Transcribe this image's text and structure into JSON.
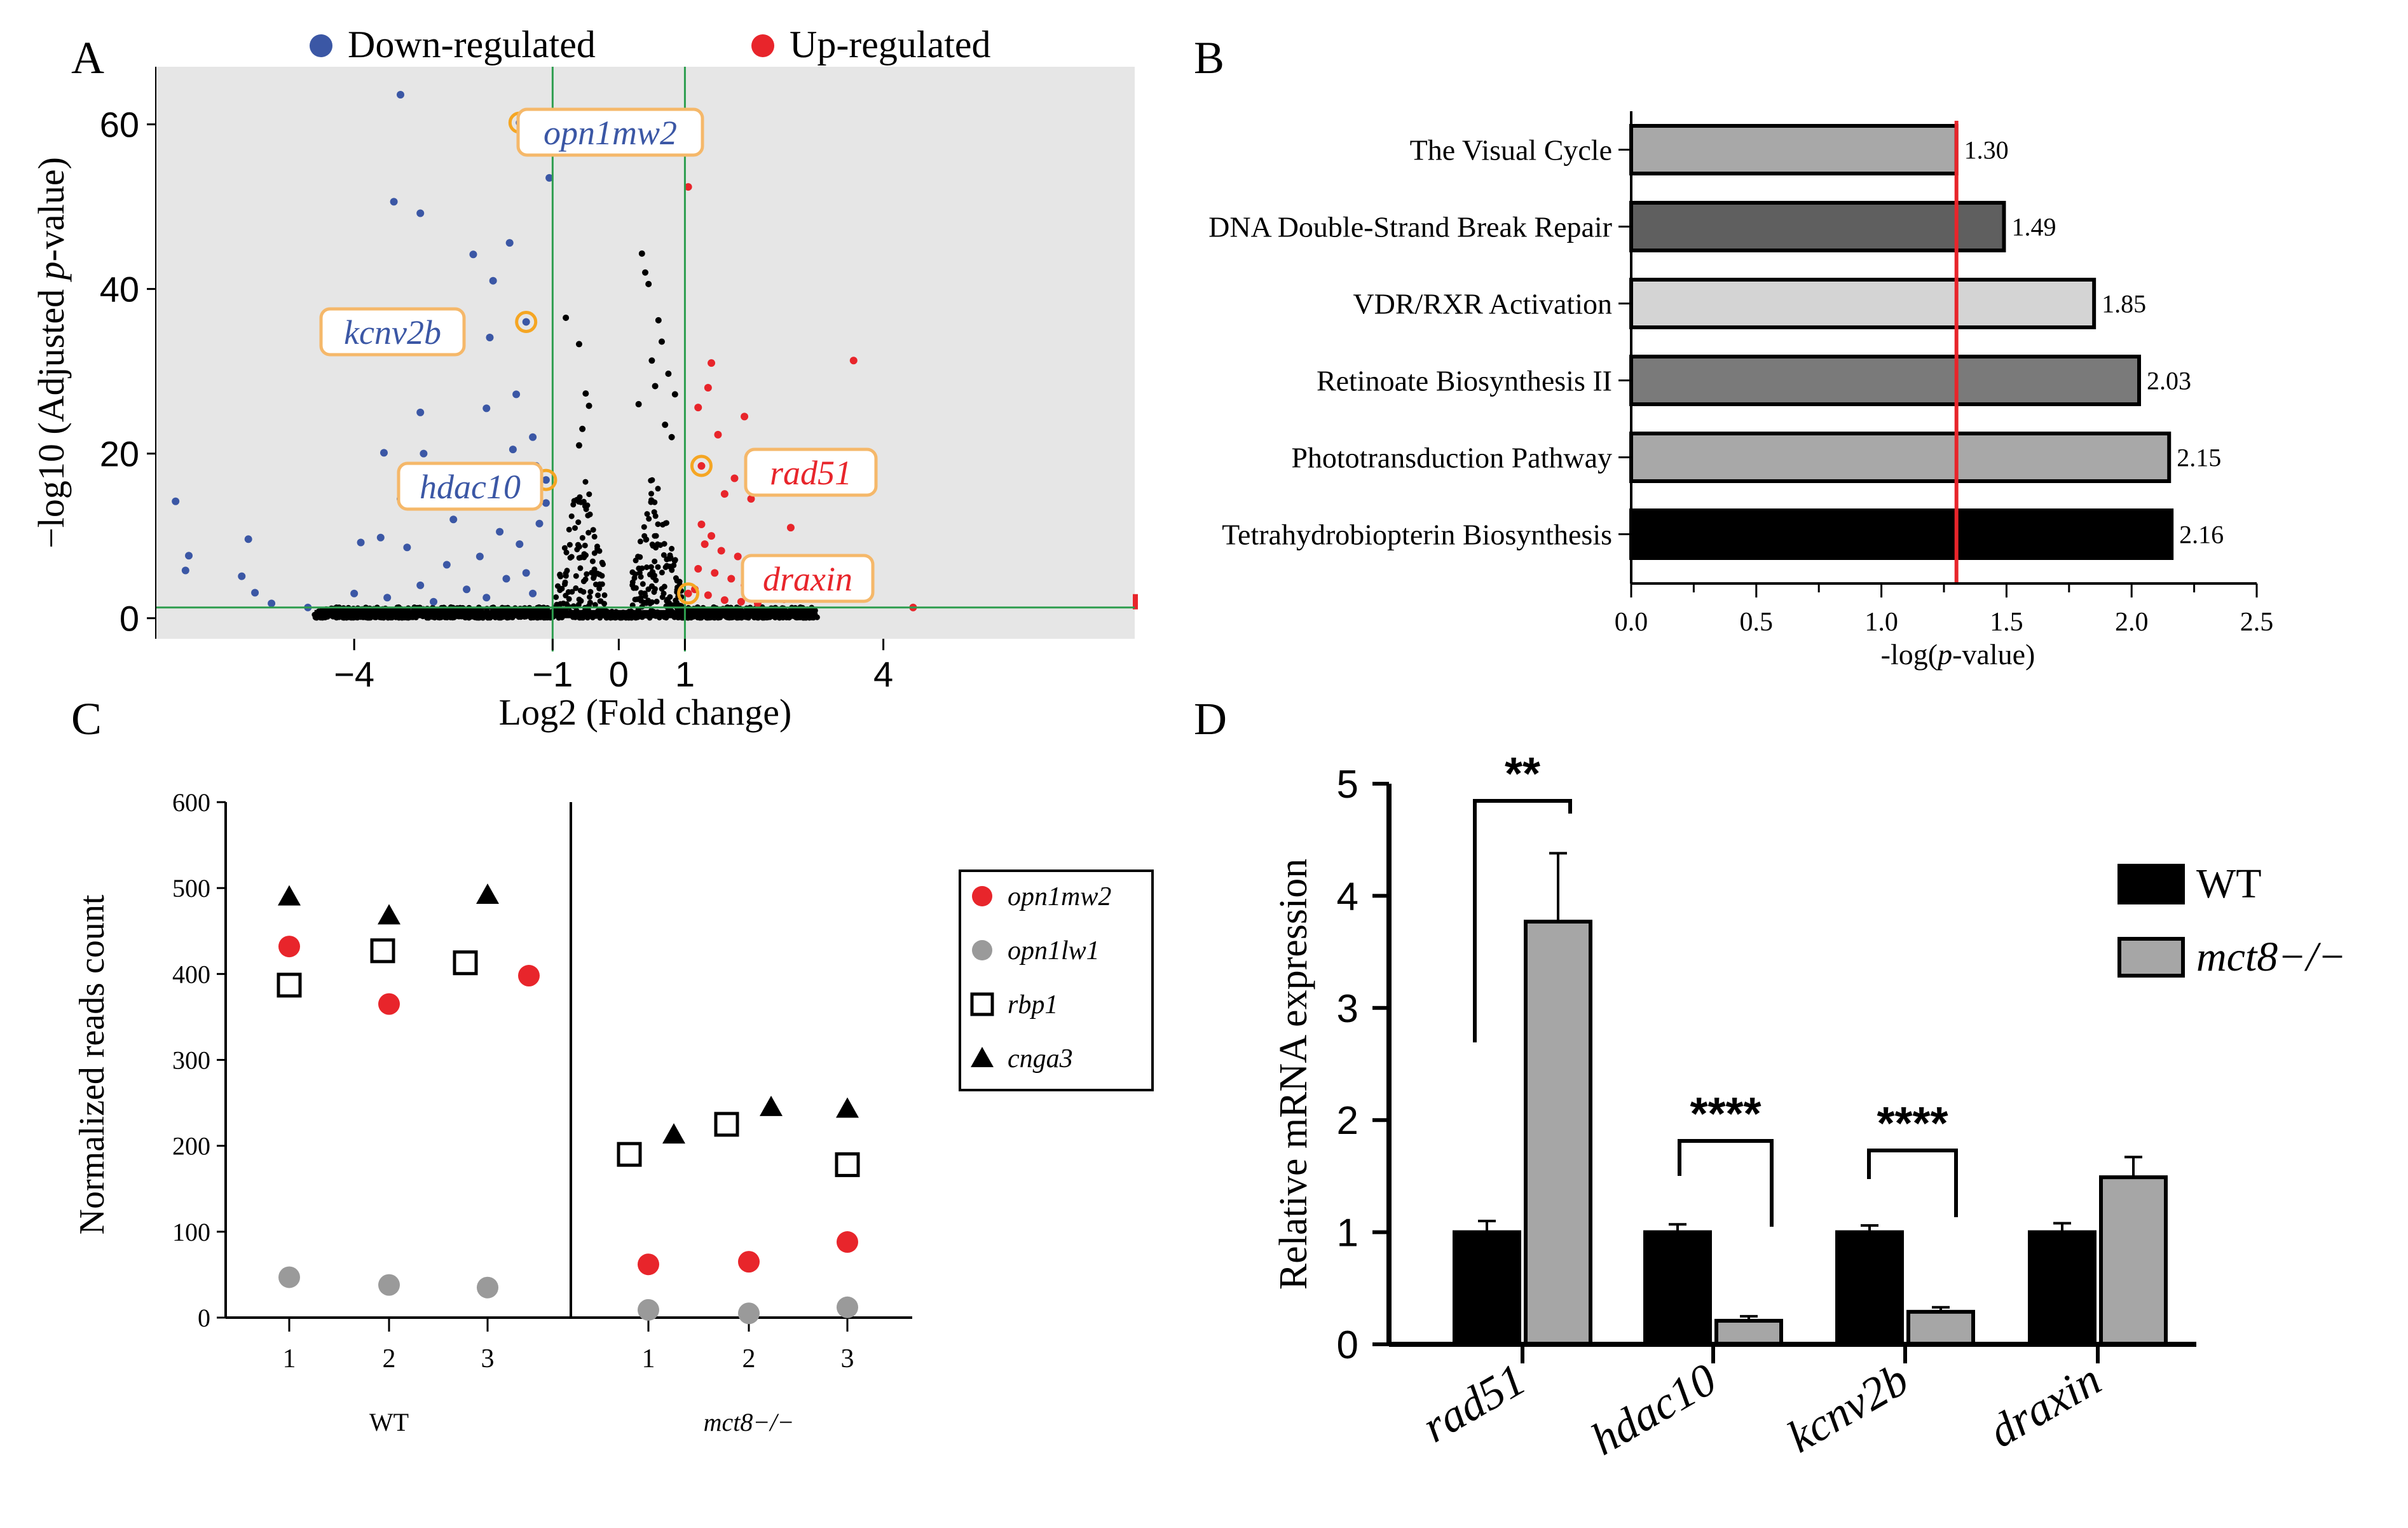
{
  "panels": {
    "A": "A",
    "B": "B",
    "C": "C",
    "D": "D"
  },
  "chart_data": [
    {
      "id": "A",
      "type": "scatter",
      "title": "",
      "xlabel": "Log2 (Fold change)",
      "ylabel": "−log10 (Adjusted p-value)",
      "ylabel_parts": [
        "−log10 (Adjusted ",
        "p",
        "-value)"
      ],
      "xlim": [
        -7.0,
        7.8
      ],
      "ylim": [
        -2.5,
        67
      ],
      "xticks": [
        -4,
        -1,
        0,
        1,
        4
      ],
      "xtick_labels": [
        "−4",
        "−1",
        "0",
        "1",
        "4"
      ],
      "yticks": [
        0,
        20,
        40,
        60
      ],
      "thresholds": {
        "log2fc": [
          -1,
          1
        ],
        "neg_log10_p": 1.3
      },
      "legend": [
        {
          "label": "Down-regulated",
          "color": "#3b57a5"
        },
        {
          "label": "Up-regulated",
          "color": "#e8252b"
        }
      ],
      "colors": {
        "down": "#3b57a5",
        "up": "#e8252b",
        "ns": "#000000",
        "threshold": "#2e9e4f",
        "panel_bg": "#e6e6e6",
        "highlight": "#f5a623",
        "label_box_border": "#f5b86a"
      },
      "highlighted_genes": [
        {
          "gene": "opn1mw2",
          "x": -1.5,
          "y": 60.2,
          "direction": "down"
        },
        {
          "gene": "kcnv2b",
          "x": -1.4,
          "y": 36.0,
          "direction": "down"
        },
        {
          "gene": "hdac10",
          "x": -1.1,
          "y": 16.8,
          "direction": "down"
        },
        {
          "gene": "rad51",
          "x": 1.25,
          "y": 18.5,
          "direction": "up"
        },
        {
          "gene": "draxin",
          "x": 1.05,
          "y": 3.0,
          "direction": "up"
        }
      ],
      "points": {
        "down": [
          [
            -6.7,
            14.2
          ],
          [
            -6.5,
            7.6
          ],
          [
            -6.55,
            5.8
          ],
          [
            -5.6,
            9.6
          ],
          [
            -5.7,
            5.1
          ],
          [
            -5.5,
            3.1
          ],
          [
            -5.25,
            1.8
          ],
          [
            -4.7,
            1.3
          ],
          [
            -3.3,
            63.6
          ],
          [
            -3.4,
            50.6
          ],
          [
            -3.0,
            49.2
          ],
          [
            -2.2,
            44.2
          ],
          [
            -1.65,
            45.6
          ],
          [
            -1.9,
            41.0
          ],
          [
            -1.95,
            34.1
          ],
          [
            -2.0,
            25.5
          ],
          [
            -1.55,
            27.2
          ],
          [
            -3.0,
            25.0
          ],
          [
            -3.55,
            20.1
          ],
          [
            -2.95,
            20.0
          ],
          [
            -2.8,
            17.5
          ],
          [
            -3.3,
            14.5
          ],
          [
            -3.6,
            9.8
          ],
          [
            -3.9,
            9.2
          ],
          [
            -3.2,
            8.6
          ],
          [
            -2.5,
            12.0
          ],
          [
            -1.6,
            20.5
          ],
          [
            -1.3,
            22.0
          ],
          [
            -1.25,
            18.5
          ],
          [
            -1.05,
            53.5
          ],
          [
            -2.6,
            6.5
          ],
          [
            -2.1,
            7.5
          ],
          [
            -1.8,
            10.5
          ],
          [
            -1.5,
            9.0
          ],
          [
            -1.2,
            11.5
          ],
          [
            -1.1,
            14.0
          ],
          [
            -3.0,
            4.0
          ],
          [
            -2.3,
            3.5
          ],
          [
            -1.7,
            4.8
          ],
          [
            -1.4,
            5.5
          ],
          [
            -4.0,
            3.0
          ],
          [
            -3.5,
            2.5
          ],
          [
            -2.8,
            2.0
          ],
          [
            -2.0,
            2.5
          ],
          [
            -1.3,
            3.0
          ]
        ],
        "up": [
          [
            3.55,
            31.3
          ],
          [
            3.6,
            3.7
          ],
          [
            4.45,
            1.3
          ],
          [
            1.4,
            31.0
          ],
          [
            1.35,
            28.0
          ],
          [
            1.9,
            24.5
          ],
          [
            1.5,
            22.3
          ],
          [
            1.2,
            25.6
          ],
          [
            1.75,
            17.0
          ],
          [
            1.6,
            15.1
          ],
          [
            2.15,
            17.1
          ],
          [
            2.0,
            14.5
          ],
          [
            2.6,
            11.0
          ],
          [
            2.8,
            6.6
          ],
          [
            1.25,
            11.4
          ],
          [
            1.4,
            10.0
          ],
          [
            1.3,
            9.0
          ],
          [
            1.55,
            8.2
          ],
          [
            1.8,
            7.5
          ],
          [
            2.05,
            6.5
          ],
          [
            2.3,
            5.0
          ],
          [
            1.2,
            6.0
          ],
          [
            1.45,
            5.5
          ],
          [
            1.7,
            4.8
          ],
          [
            1.9,
            4.0
          ],
          [
            2.2,
            3.0
          ],
          [
            2.5,
            2.3
          ],
          [
            1.15,
            3.5
          ],
          [
            1.35,
            2.8
          ],
          [
            1.6,
            2.2
          ],
          [
            1.85,
            2.0
          ],
          [
            2.1,
            1.8
          ],
          [
            1.05,
            52.4
          ]
        ],
        "ns_extra": [
          [
            -0.8,
            36.5
          ],
          [
            -0.6,
            33.3
          ],
          [
            -0.5,
            27.3
          ],
          [
            -0.45,
            25.8
          ],
          [
            0.35,
            44.3
          ],
          [
            0.4,
            42.0
          ],
          [
            0.45,
            40.6
          ],
          [
            0.6,
            36.2
          ],
          [
            0.65,
            33.6
          ],
          [
            0.5,
            31.3
          ],
          [
            0.75,
            29.7
          ],
          [
            0.55,
            28.2
          ],
          [
            0.85,
            27.2
          ],
          [
            0.3,
            26.0
          ],
          [
            -0.55,
            23.0
          ],
          [
            -0.6,
            21.0
          ],
          [
            0.7,
            23.5
          ],
          [
            0.8,
            22.0
          ]
        ]
      },
      "ns_cloud": {
        "x_range": [
          -4.6,
          3.0
        ],
        "note": "dense non-significant genes near the axes"
      }
    },
    {
      "id": "B",
      "type": "bar",
      "orientation": "horizontal",
      "title": "",
      "xlabel": "-log(p-value)",
      "xlabel_parts": [
        "-log(",
        "p",
        "-value)"
      ],
      "ylabel": "",
      "xlim": [
        0,
        2.5
      ],
      "xticks": [
        0.0,
        0.5,
        1.0,
        1.5,
        2.0,
        2.5
      ],
      "xtick_labels": [
        "0.0",
        "0.5",
        "1.0",
        "1.5",
        "2.0",
        "2.5"
      ],
      "threshold": 1.3,
      "threshold_color": "#e8252b",
      "categories": [
        "The Visual Cycle",
        "DNA Double-Strand Break Repair",
        "VDR/RXR Activation",
        "Retinoate Biosynthesis II",
        "Phototransduction Pathway",
        "Tetrahydrobiopterin Biosynthesis"
      ],
      "values": [
        1.3,
        1.49,
        1.85,
        2.03,
        2.15,
        2.16
      ],
      "value_labels": [
        "1.30",
        "1.49",
        "1.85",
        "2.03",
        "2.15",
        "2.16"
      ],
      "bar_colors": [
        "#a8a8a8",
        "#5f5f5f",
        "#d4d4d4",
        "#7a7a7a",
        "#a8a8a8",
        "#000000"
      ]
    },
    {
      "id": "C",
      "type": "scatter",
      "title": "",
      "ylabel": "Normalized reads count",
      "ylim": [
        0,
        600
      ],
      "yticks": [
        0,
        100,
        200,
        300,
        400,
        500,
        600
      ],
      "groups": [
        "WT",
        "mct8−/−"
      ],
      "group_styles": [
        "normal",
        "italic"
      ],
      "replicates": [
        "1",
        "2",
        "3"
      ],
      "series": [
        {
          "name": "opn1mw2",
          "marker": "circle",
          "color": "#e8252b",
          "values": {
            "WT": [
              432,
              365,
              398
            ],
            "mct8−/−": [
              62,
              65,
              88
            ]
          }
        },
        {
          "name": "opn1lw1",
          "marker": "circle",
          "color": "#9a9a9a",
          "values": {
            "WT": [
              47,
              38,
              35
            ],
            "mct8−/−": [
              9,
              5,
              12
            ]
          }
        },
        {
          "name": "rbp1",
          "marker": "open-square",
          "color": "#000000",
          "values": {
            "WT": [
              387,
              427,
              413
            ],
            "mct8−/−": [
              190,
              225,
              178
            ]
          }
        },
        {
          "name": "cnga3",
          "marker": "triangle",
          "color": "#000000",
          "values": {
            "WT": [
              490,
              468,
              492
            ],
            "mct8−/−": [
              213,
              245,
              243
            ]
          }
        }
      ]
    },
    {
      "id": "D",
      "type": "bar",
      "title": "",
      "xlabel": "",
      "ylabel": "Relative mRNA expression",
      "ylim": [
        0,
        5
      ],
      "yticks": [
        0,
        1,
        2,
        3,
        4,
        5
      ],
      "categories": [
        "rad51",
        "hdac10",
        "kcnv2b",
        "draxin"
      ],
      "series": [
        {
          "name": "WT",
          "color": "#000000",
          "values": [
            1.0,
            1.0,
            1.0,
            1.0
          ],
          "errors": [
            0.1,
            0.07,
            0.06,
            0.08
          ]
        },
        {
          "name": "mct8−/−",
          "color": "#a6a6a6",
          "values": [
            3.77,
            0.21,
            0.29,
            1.49
          ],
          "errors": [
            0.61,
            0.04,
            0.04,
            0.18
          ]
        }
      ],
      "significance": [
        "**",
        "****",
        "****",
        ""
      ]
    }
  ]
}
